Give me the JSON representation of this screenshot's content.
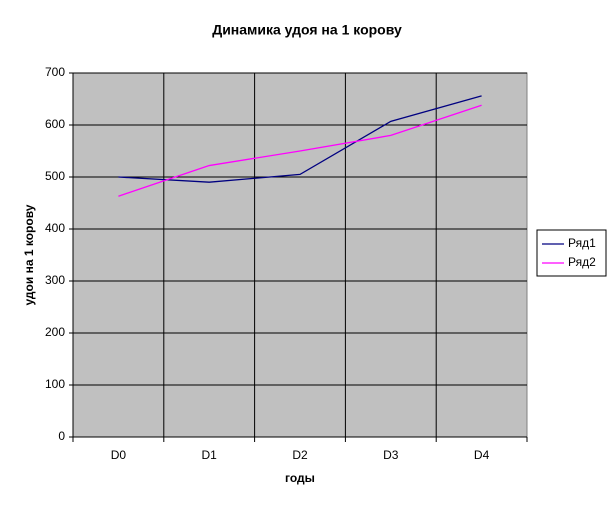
{
  "chart_data": {
    "type": "line",
    "title": "Динамика удоя на 1 корову",
    "x_label": "годы",
    "y_label": "удои на 1 корову",
    "categories": [
      "D0",
      "D1",
      "D2",
      "D3",
      "D4"
    ],
    "series": [
      {
        "name": "Ряд1",
        "color": "#000080",
        "values": [
          500,
          490,
          505,
          607,
          656
        ]
      },
      {
        "name": "Ряд2",
        "color": "#ff00ff",
        "values": [
          463,
          522,
          550,
          580,
          638
        ]
      }
    ],
    "ylim": [
      0,
      700
    ],
    "yticks": [
      0,
      100,
      200,
      300,
      400,
      500,
      600,
      700
    ],
    "grid": true,
    "legend": "right"
  }
}
